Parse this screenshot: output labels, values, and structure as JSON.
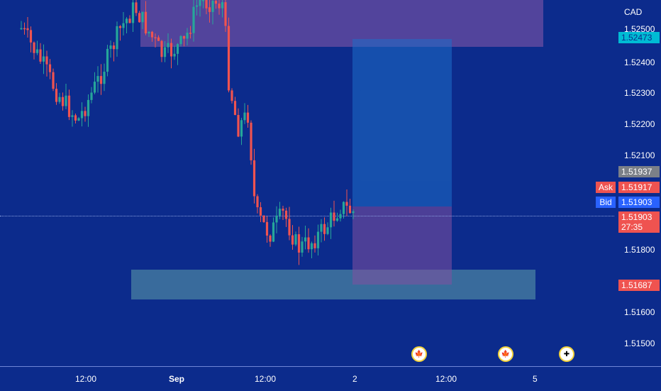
{
  "axis": {
    "currency": "CAD",
    "ticks": [
      "1.52500",
      "1.52400",
      "1.52300",
      "1.52200",
      "1.52100",
      "1.51800",
      "1.51600",
      "1.51500"
    ],
    "tags": {
      "resistance": "1.52473",
      "high": "1.51937",
      "ask_label": "Ask",
      "ask": "1.51917",
      "bid_label": "Bid",
      "bid": "1.51903",
      "last": "1.51903",
      "countdown": "27:35",
      "support": "1.51687"
    }
  },
  "time_axis": {
    "labels": [
      "12:00",
      "Sep",
      "12:00",
      "2",
      "12:00",
      "5"
    ]
  },
  "colors": {
    "background": "#0c2b8c",
    "up": "#26a69a",
    "down": "#ef5350",
    "supply_zone": "#6b4a9c",
    "demand_zone": "#4f8fa3",
    "target_zone": "#1e6ec2",
    "stop_zone": "#7a4a96"
  },
  "events": [
    "canada-flag-icon",
    "canada-flag-icon",
    "uk-flag-icon"
  ]
}
